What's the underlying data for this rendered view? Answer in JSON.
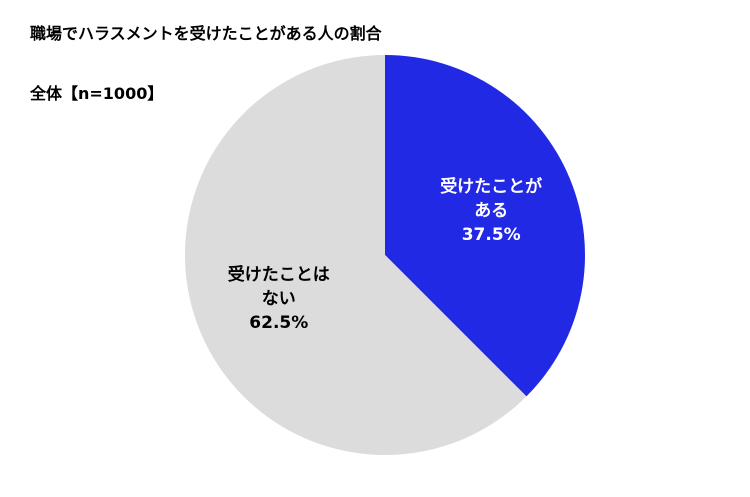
{
  "chart_data": {
    "type": "pie",
    "title": "職場でハラスメントを受けたことがある人の割合",
    "subtitle": "全体【n=1000】",
    "slices": [
      {
        "label_lines": [
          "受けたことが",
          "ある"
        ],
        "value": 37.5,
        "value_label": "37.5%",
        "color": "#2229e5",
        "text_color": "#ffffff"
      },
      {
        "label_lines": [
          "受けたことは",
          "ない"
        ],
        "value": 62.5,
        "value_label": "62.5%",
        "color": "#dcdcdc",
        "text_color": "#000000"
      }
    ],
    "start_angle": "12 o'clock",
    "direction": "clockwise",
    "legend": "none"
  }
}
